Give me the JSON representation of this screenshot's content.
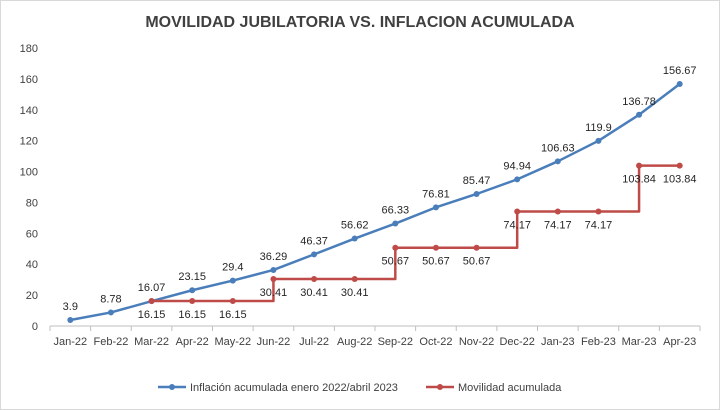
{
  "chart_data": {
    "type": "line",
    "title": "MOVILIDAD JUBILATORIA VS. INFLACION ACUMULADA",
    "categories": [
      "Jan-22",
      "Feb-22",
      "Mar-22",
      "Apr-22",
      "May-22",
      "Jun-22",
      "Jul-22",
      "Aug-22",
      "Sep-22",
      "Oct-22",
      "Nov-22",
      "Dec-22",
      "Jan-23",
      "Feb-23",
      "Mar-23",
      "Apr-23"
    ],
    "ylim": [
      0,
      180
    ],
    "yticks": [
      0,
      20,
      40,
      60,
      80,
      100,
      120,
      140,
      160,
      180
    ],
    "grid": false,
    "legend_position": "bottom",
    "series": [
      {
        "name": "Inflación acumulada enero 2022/abril 2023",
        "color": "#4a7ebb",
        "values": [
          3.9,
          8.78,
          16.07,
          23.15,
          29.4,
          36.29,
          46.37,
          56.62,
          66.33,
          76.81,
          85.47,
          94.94,
          106.63,
          119.9,
          136.78,
          156.67
        ],
        "labels": [
          "3.9",
          "8.78",
          "16.07",
          "23.15",
          "29.4",
          "36.29",
          "46.37",
          "56.62",
          "66.33",
          "76.81",
          "85.47",
          "94.94",
          "106.63",
          "119.9",
          "136.78",
          "156.67"
        ]
      },
      {
        "name": "Movilidad acumulada",
        "color": "#be4b48",
        "step": true,
        "start_index": 2,
        "values": [
          null,
          null,
          16.15,
          16.15,
          16.15,
          30.41,
          30.41,
          30.41,
          50.67,
          50.67,
          50.67,
          74.17,
          74.17,
          74.17,
          103.84,
          103.84
        ],
        "labels": [
          null,
          null,
          "16.15",
          "16.15",
          "16.15",
          "30.41",
          "30.41",
          "30.41",
          "50.67",
          "50.67",
          "50.67",
          "74.17",
          "74.17",
          "74.17",
          "103.84",
          "103.84"
        ]
      }
    ]
  }
}
